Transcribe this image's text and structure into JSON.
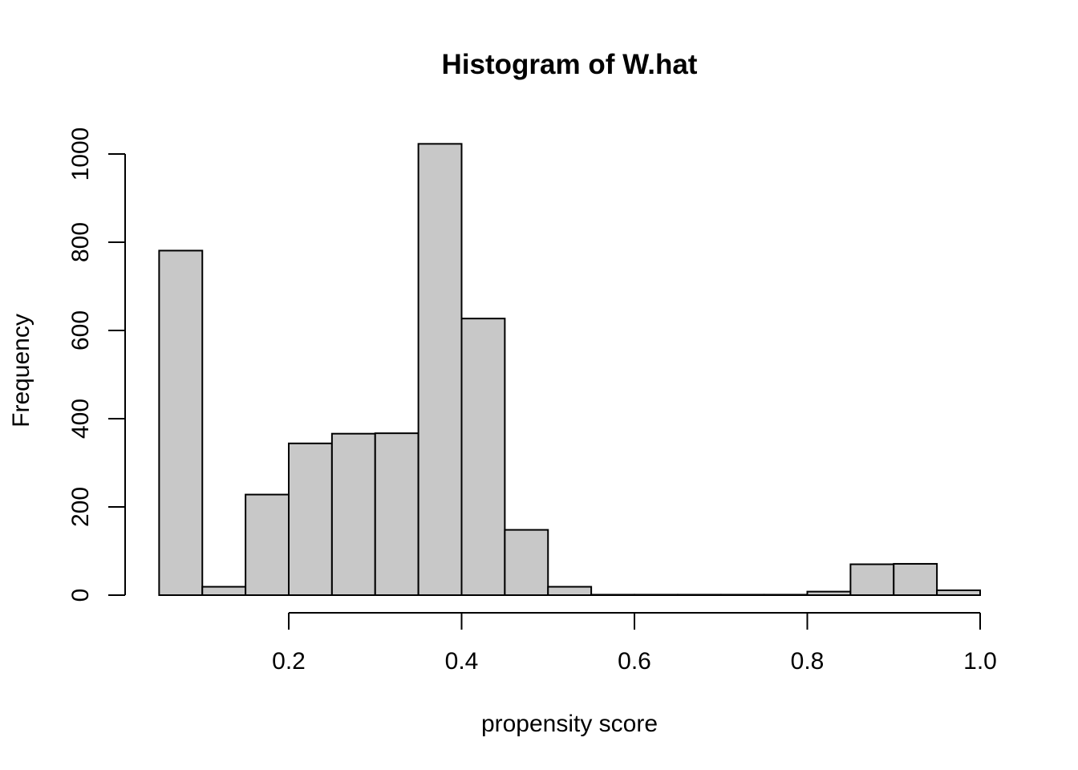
{
  "chart_data": {
    "type": "histogram",
    "title": "Histogram of W.hat",
    "xlabel": "propensity score",
    "ylabel": "Frequency",
    "bin_edges": [
      0.05,
      0.1,
      0.15,
      0.2,
      0.25,
      0.3,
      0.35,
      0.4,
      0.45,
      0.5,
      0.55,
      0.6,
      0.65,
      0.7,
      0.75,
      0.8,
      0.85,
      0.9,
      0.95,
      1.0
    ],
    "counts": [
      781,
      19,
      228,
      344,
      366,
      367,
      1023,
      627,
      148,
      19,
      1,
      1,
      1,
      1,
      1,
      8,
      70,
      71,
      11
    ],
    "x_ticks": [
      0.2,
      0.4,
      0.6,
      0.8,
      1.0
    ],
    "x_tick_labels": [
      "0.2",
      "0.4",
      "0.6",
      "0.8",
      "1.0"
    ],
    "y_ticks": [
      0,
      200,
      400,
      600,
      800,
      1000
    ],
    "y_tick_labels": [
      "0",
      "200",
      "400",
      "600",
      "800",
      "1000"
    ],
    "xlim": [
      0.05,
      1.0
    ],
    "ylim": [
      0,
      1023
    ],
    "bar_fill": "#c8c8c8",
    "bar_stroke": "#000000",
    "grid": false,
    "legend": "none"
  }
}
